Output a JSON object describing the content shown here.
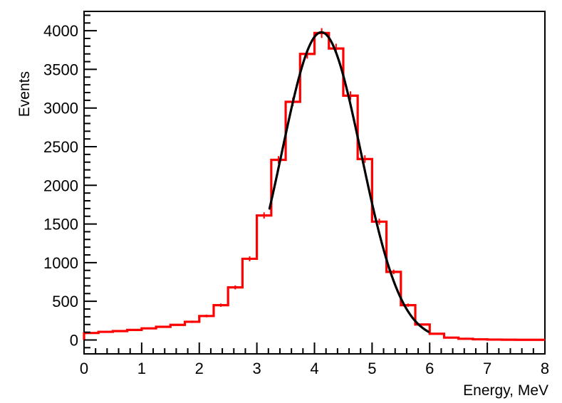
{
  "chart_data": {
    "type": "histogram",
    "xlabel": "Energy, MeV",
    "ylabel": "Events",
    "xlim": [
      0,
      8
    ],
    "ylim": [
      -180,
      4250
    ],
    "x_ticks": [
      0,
      1,
      2,
      3,
      4,
      5,
      6,
      7,
      8
    ],
    "y_ticks": [
      0,
      500,
      1000,
      1500,
      2000,
      2500,
      3000,
      3500,
      4000
    ],
    "grid": false,
    "bin_width": 0.25,
    "series": [
      {
        "kind": "histogram",
        "color": "#ff0000",
        "bin_edges": [
          0,
          0.25,
          0.5,
          0.75,
          1.0,
          1.25,
          1.5,
          1.75,
          2.0,
          2.25,
          2.5,
          2.75,
          3.0,
          3.25,
          3.5,
          3.75,
          4.0,
          4.25,
          4.5,
          4.75,
          5.0,
          5.25,
          5.5,
          5.75,
          6.0,
          6.25,
          6.5,
          6.75,
          7.0,
          7.25,
          7.5,
          7.75,
          8.0
        ],
        "values": [
          90,
          105,
          115,
          130,
          150,
          170,
          195,
          235,
          310,
          450,
          680,
          1050,
          1610,
          2330,
          3080,
          3700,
          3970,
          3770,
          3160,
          2340,
          1530,
          880,
          450,
          200,
          80,
          30,
          15,
          8,
          5,
          3,
          2,
          2
        ]
      },
      {
        "kind": "fit",
        "function": "gaussian",
        "color": "#000000",
        "constant": 3980,
        "mean": 4.12,
        "sigma": 0.69,
        "range": [
          3.22,
          5.98
        ]
      }
    ]
  }
}
